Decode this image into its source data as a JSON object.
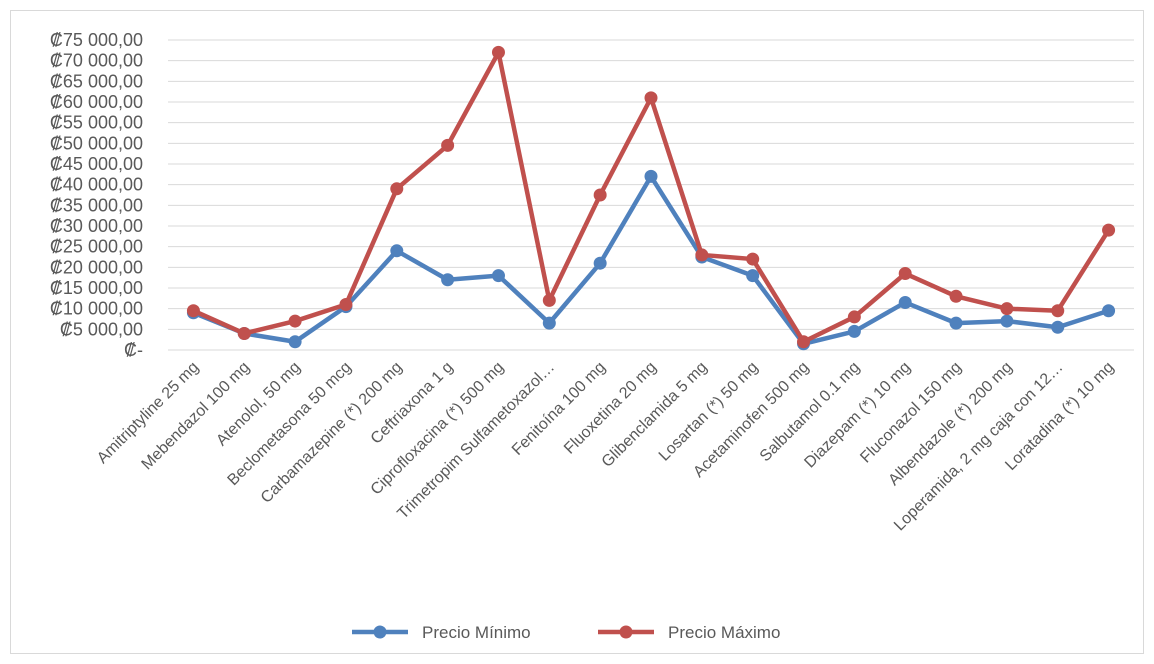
{
  "chart_data": {
    "type": "line",
    "title": "",
    "xlabel": "",
    "ylabel": "",
    "categories": [
      "Amitriptyline 25 mg",
      "Mebendazol 100 mg",
      "Atenolol, 50 mg",
      "Beclometasona 50 mcg",
      "Carbamazepine (*) 200 mg",
      "Ceftriaxona 1 g",
      "Ciprofloxacina (*) 500 mg",
      "Trimetropim Sulfametoxazol…",
      "Fenitoína 100 mg",
      "Fluoxetina 20 mg",
      "Glibenclamida 5 mg",
      "Losartan (*) 50 mg",
      "Acetaminofen 500 mg",
      "Salbutamol 0.1 mg",
      "Diazepam (*) 10 mg",
      "Fluconazol 150 mg",
      "Albendazole (*) 200 mg",
      "Loperamida, 2 mg caja con 12…",
      "Loratadina (*) 10 mg"
    ],
    "series": [
      {
        "name": "Precio Mínimo",
        "color": "#4f81bd",
        "values": [
          9000,
          4000,
          2000,
          10500,
          24000,
          17000,
          18000,
          6500,
          21000,
          42000,
          22500,
          18000,
          1500,
          4500,
          11500,
          6500,
          7000,
          5500,
          9500
        ]
      },
      {
        "name": "Precio Máximo",
        "color": "#c0504d",
        "values": [
          9500,
          4000,
          7000,
          11000,
          39000,
          49500,
          72000,
          12000,
          37500,
          61000,
          23000,
          22000,
          2000,
          8000,
          18500,
          13000,
          10000,
          9500,
          29000
        ]
      }
    ],
    "ylim": [
      0,
      75000
    ],
    "y_ticks": [
      {
        "value": 0,
        "label": "₡-"
      },
      {
        "value": 5000,
        "label": "₡5 000,00"
      },
      {
        "value": 10000,
        "label": "₡10 000,00"
      },
      {
        "value": 15000,
        "label": "₡15 000,00"
      },
      {
        "value": 20000,
        "label": "₡20 000,00"
      },
      {
        "value": 25000,
        "label": "₡25 000,00"
      },
      {
        "value": 30000,
        "label": "₡30 000,00"
      },
      {
        "value": 35000,
        "label": "₡35 000,00"
      },
      {
        "value": 40000,
        "label": "₡40 000,00"
      },
      {
        "value": 45000,
        "label": "₡45 000,00"
      },
      {
        "value": 50000,
        "label": "₡50 000,00"
      },
      {
        "value": 55000,
        "label": "₡55 000,00"
      },
      {
        "value": 60000,
        "label": "₡60 000,00"
      },
      {
        "value": 65000,
        "label": "₡65 000,00"
      },
      {
        "value": 70000,
        "label": "₡70 000,00"
      },
      {
        "value": 75000,
        "label": "₡75 000,00"
      }
    ],
    "grid": true,
    "legend_position": "bottom"
  }
}
